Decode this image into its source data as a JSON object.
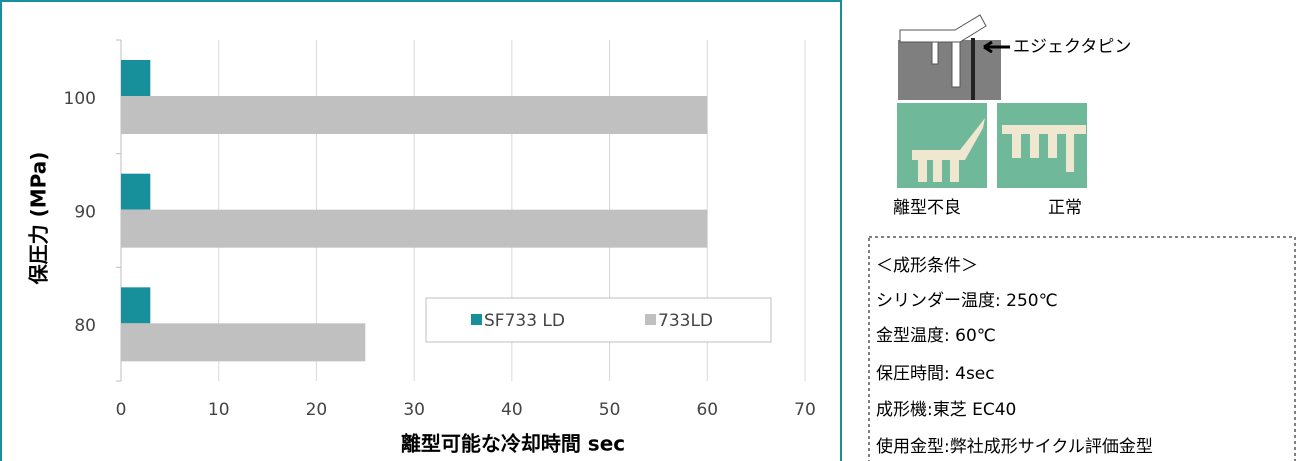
{
  "chart_data": {
    "type": "hbar",
    "x_label": "離型可能な冷却時間 sec",
    "y_label": "保圧力 (MPa)",
    "categories": [
      "100",
      "90",
      "80"
    ],
    "series": [
      {
        "name": "SF733 LD",
        "color": "#17909b",
        "values": [
          3,
          3,
          3
        ]
      },
      {
        "name": "733LD",
        "color": "#c0c0c0",
        "values": [
          60,
          60,
          25
        ]
      }
    ],
    "xlim": [
      0,
      70
    ],
    "xticks": [
      0,
      10,
      20,
      30,
      40,
      50,
      60,
      70
    ],
    "grid": true,
    "legend": "lower right"
  },
  "panel": {
    "pin_label": "エジェクタピン",
    "photo_labels": [
      "離型不良",
      "正常"
    ],
    "conditions": [
      "＜成形条件＞",
      "シリンダー温度: 250℃",
      "金型温度: 60℃",
      "保圧時間: 4sec",
      "成形機:東芝 EC40",
      "使用金型:弊社成形サイクル評価金型"
    ]
  }
}
